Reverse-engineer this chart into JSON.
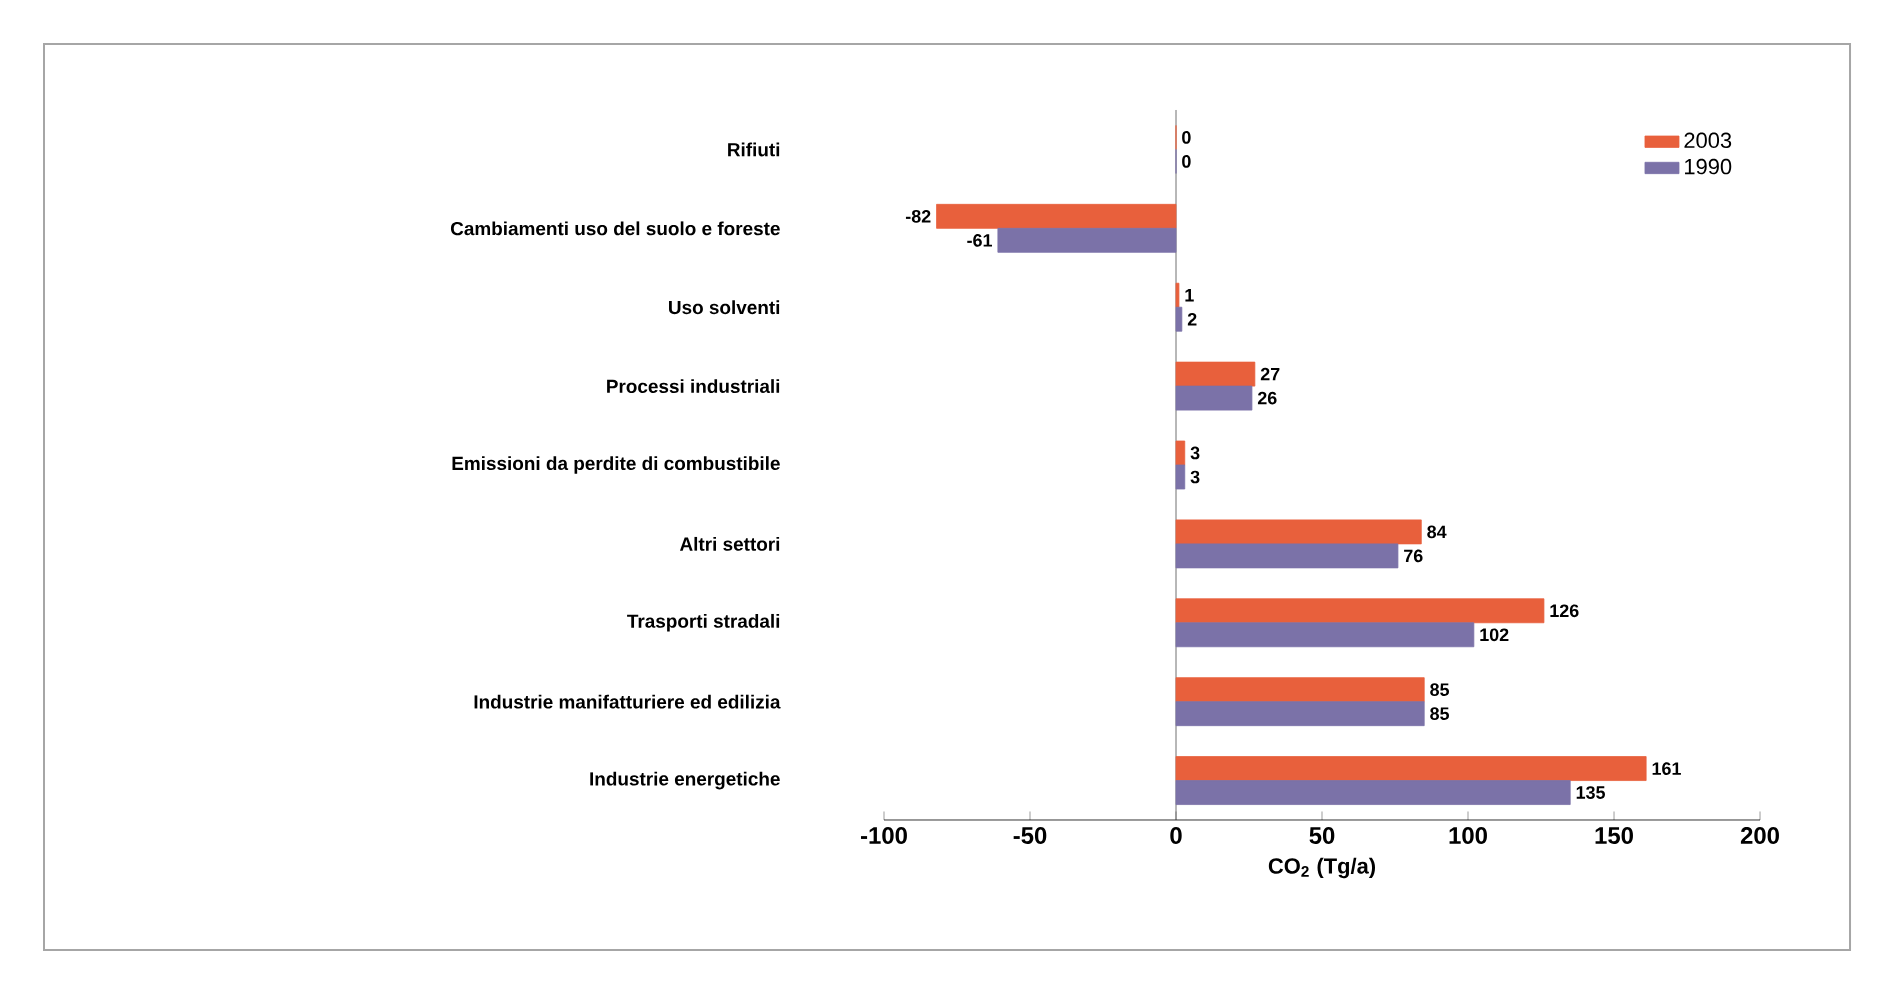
{
  "chart_data": {
    "type": "bar",
    "orientation": "horizontal",
    "xlabel": "CO$_{2}$ (Tg/a)",
    "categories": [
      "Rifiuti",
      "Cambiamenti uso del suolo e foreste",
      "Uso solventi",
      "Processi industriali",
      "Emissioni da perdite di combustibile",
      "Altri settori",
      "Trasporti stradali",
      "Industrie manifatturiere ed edilizia",
      "Industrie energetiche"
    ],
    "series": [
      {
        "name": "2003",
        "color": "#e8603c",
        "values": [
          0,
          -82,
          1,
          27,
          3,
          84,
          126,
          85,
          161
        ]
      },
      {
        "name": "1990",
        "color": "#7b72a8",
        "values": [
          0,
          -61,
          2,
          26,
          3,
          76,
          102,
          85,
          135
        ]
      }
    ],
    "xlim": [
      -100,
      200
    ],
    "xticks": [
      -100,
      -50,
      0,
      50,
      100,
      150,
      200
    ],
    "data_labels": true,
    "legend": "top right"
  }
}
